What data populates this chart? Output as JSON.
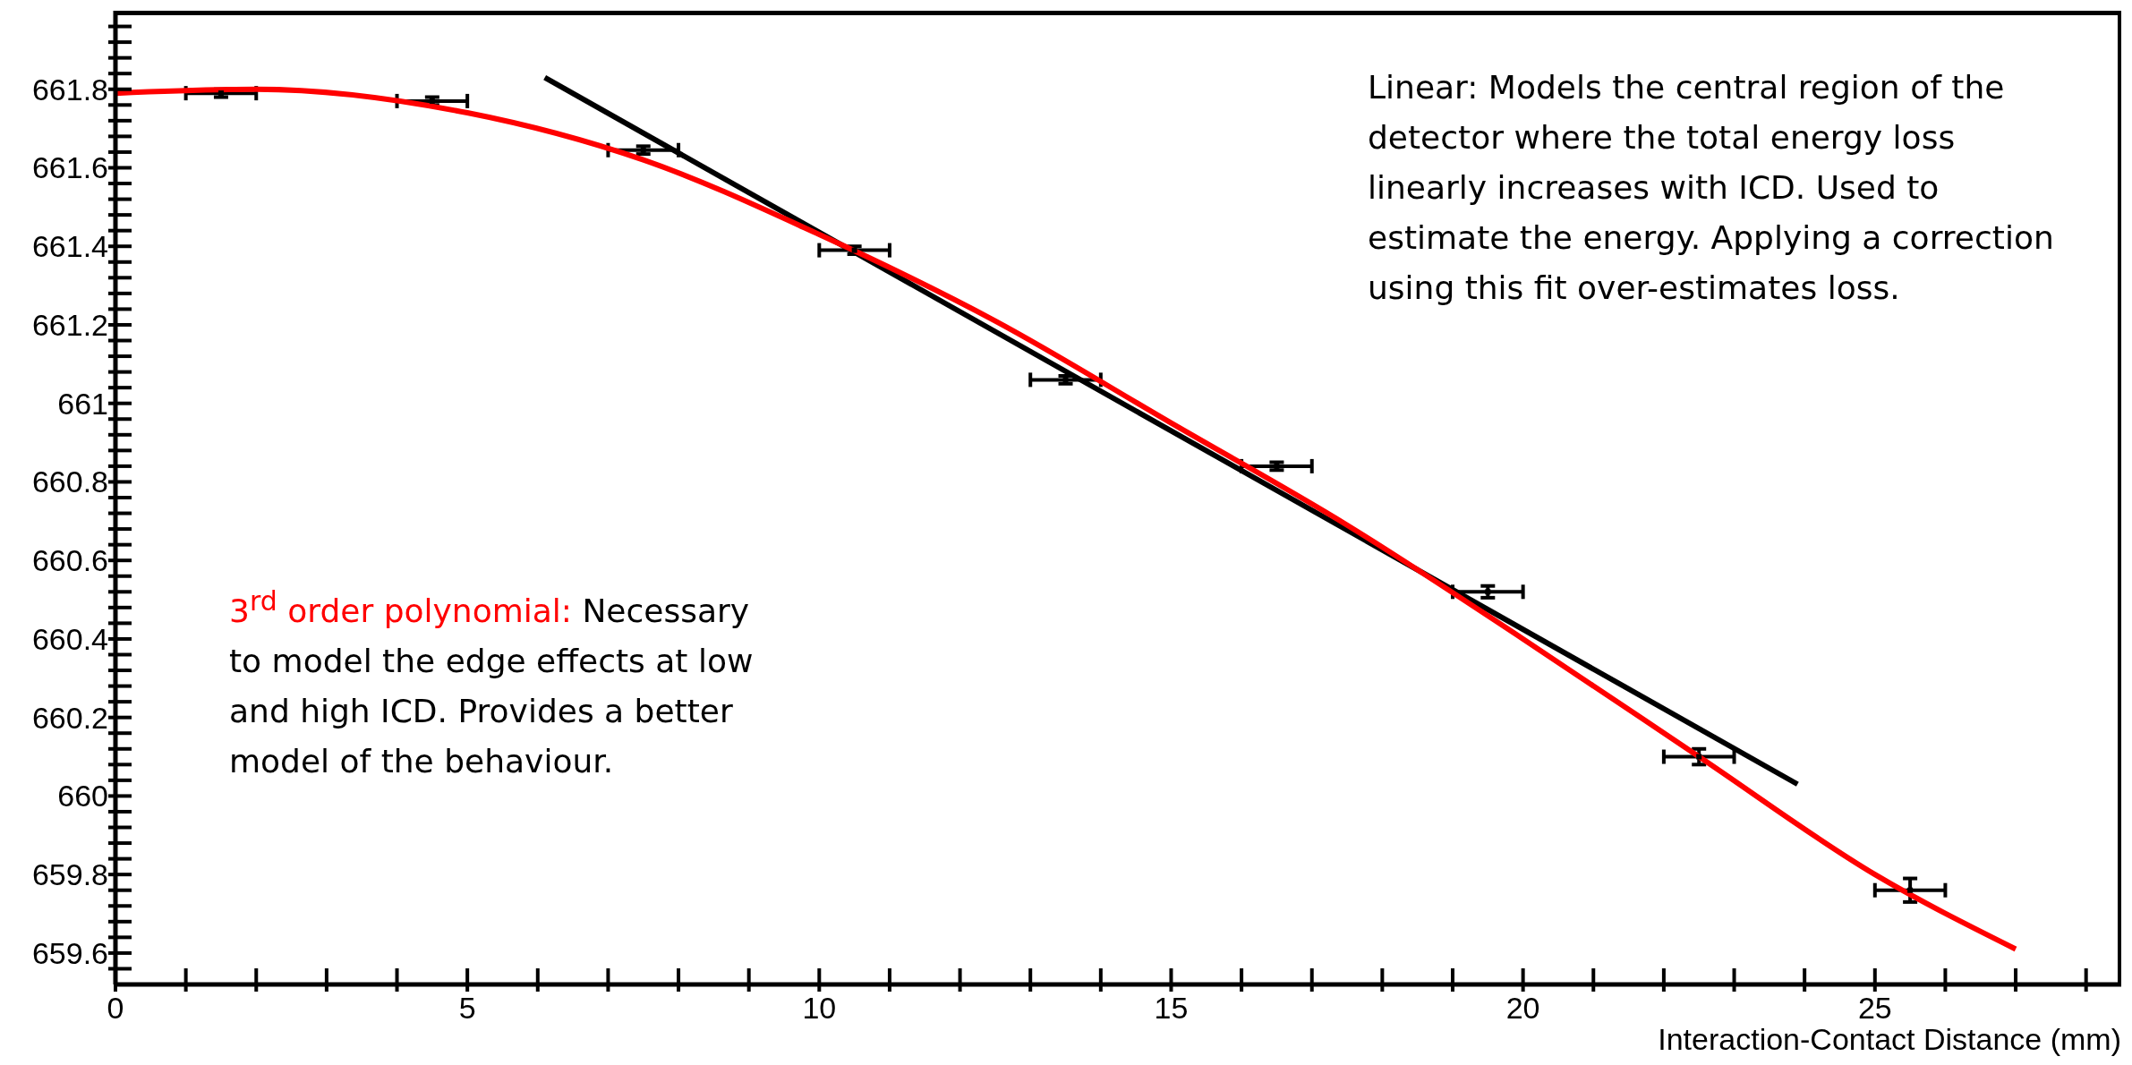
{
  "chart_data": {
    "type": "scatter",
    "xlabel": "Interaction-Contact Distance (mm)",
    "xlim": [
      0,
      28.5
    ],
    "xticks": [
      0,
      {
        "value": 1,
        "label": null
      },
      {
        "value": 2,
        "label": null
      },
      {
        "value": 3,
        "label": null
      },
      {
        "value": 4,
        "label": null
      },
      5,
      {
        "value": 6,
        "label": null
      },
      {
        "value": 7,
        "label": null
      },
      {
        "value": 8,
        "label": null
      },
      {
        "value": 9,
        "label": null
      },
      10,
      {
        "value": 11,
        "label": null
      },
      {
        "value": 12,
        "label": null
      },
      {
        "value": 13,
        "label": null
      },
      {
        "value": 14,
        "label": null
      },
      15,
      {
        "value": 16,
        "label": null
      },
      {
        "value": 17,
        "label": null
      },
      {
        "value": 18,
        "label": null
      },
      {
        "value": 19,
        "label": null
      },
      20,
      {
        "value": 21,
        "label": null
      },
      {
        "value": 22,
        "label": null
      },
      {
        "value": 23,
        "label": null
      },
      {
        "value": 24,
        "label": null
      },
      25,
      {
        "value": 26,
        "label": null
      },
      {
        "value": 27,
        "label": null
      },
      {
        "value": 28,
        "label": null
      }
    ],
    "ylim": [
      659.52,
      662.0
    ],
    "yticks": [
      {
        "value": 659.56,
        "label": null
      },
      659.6,
      {
        "value": 659.64,
        "label": null
      },
      {
        "value": 659.68,
        "label": null
      },
      {
        "value": 659.72,
        "label": null
      },
      {
        "value": 659.76,
        "label": null
      },
      659.8,
      {
        "value": 659.84,
        "label": null
      },
      {
        "value": 659.88,
        "label": null
      },
      {
        "value": 659.92,
        "label": null
      },
      {
        "value": 659.96,
        "label": null
      },
      660,
      {
        "value": 660.04,
        "label": null
      },
      {
        "value": 660.08,
        "label": null
      },
      {
        "value": 660.12,
        "label": null
      },
      {
        "value": 660.16,
        "label": null
      },
      660.2,
      {
        "value": 660.24,
        "label": null
      },
      {
        "value": 660.28,
        "label": null
      },
      {
        "value": 660.32,
        "label": null
      },
      {
        "value": 660.36,
        "label": null
      },
      660.4,
      {
        "value": 660.44,
        "label": null
      },
      {
        "value": 660.48,
        "label": null
      },
      {
        "value": 660.52,
        "label": null
      },
      {
        "value": 660.56,
        "label": null
      },
      660.6,
      {
        "value": 660.64,
        "label": null
      },
      {
        "value": 660.68,
        "label": null
      },
      {
        "value": 660.72,
        "label": null
      },
      {
        "value": 660.76,
        "label": null
      },
      660.8,
      {
        "value": 660.84,
        "label": null
      },
      {
        "value": 660.88,
        "label": null
      },
      {
        "value": 660.92,
        "label": null
      },
      {
        "value": 660.96,
        "label": null
      },
      661,
      {
        "value": 661.04,
        "label": null
      },
      {
        "value": 661.08,
        "label": null
      },
      {
        "value": 661.12,
        "label": null
      },
      {
        "value": 661.16,
        "label": null
      },
      661.2,
      {
        "value": 661.24,
        "label": null
      },
      {
        "value": 661.28,
        "label": null
      },
      {
        "value": 661.32,
        "label": null
      },
      {
        "value": 661.36,
        "label": null
      },
      661.4,
      {
        "value": 661.44,
        "label": null
      },
      {
        "value": 661.48,
        "label": null
      },
      {
        "value": 661.52,
        "label": null
      },
      {
        "value": 661.56,
        "label": null
      },
      661.6,
      {
        "value": 661.64,
        "label": null
      },
      {
        "value": 661.68,
        "label": null
      },
      {
        "value": 661.72,
        "label": null
      },
      {
        "value": 661.76,
        "label": null
      },
      661.8,
      {
        "value": 661.84,
        "label": null
      },
      {
        "value": 661.88,
        "label": null
      },
      {
        "value": 661.92,
        "label": null
      },
      {
        "value": 661.96,
        "label": null
      }
    ],
    "grid": false,
    "legend": false,
    "series": [
      {
        "type": "scatter",
        "color": "#000000",
        "x": [
          1.5,
          4.5,
          7.5,
          10.5,
          13.5,
          16.5,
          19.5,
          22.5,
          25.5
        ],
        "values": [
          661.79,
          661.77,
          661.645,
          661.39,
          661.06,
          660.84,
          660.52,
          660.1,
          659.76
        ],
        "errors": [
          0.01,
          0.01,
          0.01,
          0.01,
          0.01,
          0.01,
          0.015,
          0.02,
          0.03
        ],
        "xerrors": [
          0.5,
          0.5,
          0.5,
          0.5,
          0.5,
          0.5,
          0.5,
          0.5,
          0.5
        ]
      },
      {
        "type": "line",
        "name": "Linear:",
        "color": "#000000",
        "x": [
          6.1,
          23.9
        ],
        "values": [
          661.83,
          660.03
        ]
      },
      {
        "type": "line",
        "name": "3$^{rd}$ order polynomial:",
        "color": "#ff0000",
        "x": [
          0,
          2,
          5,
          7.5,
          10,
          12.5,
          15,
          17.5,
          20,
          22.5,
          25,
          27
        ],
        "values": [
          661.79,
          661.8,
          661.74,
          661.62,
          661.43,
          661.21,
          660.95,
          660.69,
          660.4,
          660.1,
          659.8,
          659.61
        ]
      }
    ],
    "annotations": [
      "Models the central region of the detector where the total energy loss linearly increases with ICD. Used to estimate the energy. Applying a correction using this fit over-estimates loss.",
      "Necessary to model the edge effects at low and high ICD. Provides a better model of the behaviour."
    ]
  }
}
